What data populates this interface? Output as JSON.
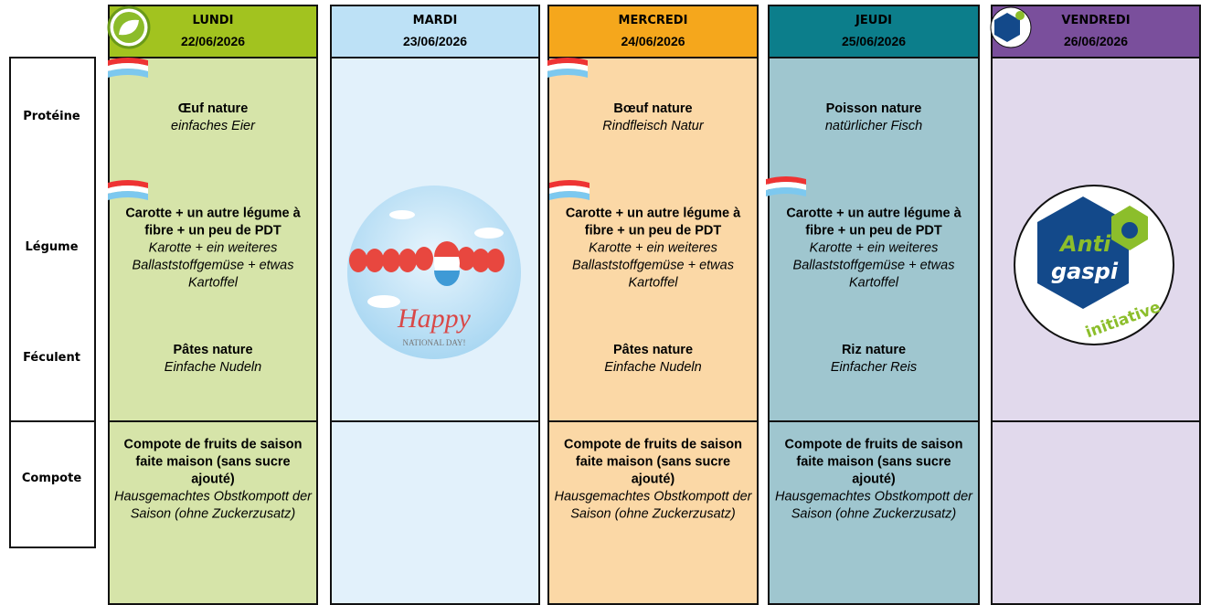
{
  "row_labels": {
    "proteine": "Protéine",
    "legume": "Légume",
    "feculent": "Féculent",
    "compote": "Compote"
  },
  "days": [
    {
      "name": "LUNDI",
      "date": "22/06/2026",
      "proteine": {
        "fr": "Œuf nature",
        "de": "einfaches Eier"
      },
      "legume": {
        "fr": "Carotte + un autre légume à fibre + un peu de PDT",
        "de": "Karotte + ein weiteres Ballaststoffgemüse + etwas Kartoffel"
      },
      "feculent": {
        "fr": "Pâtes nature",
        "de": "Einfache Nudeln"
      },
      "compote": {
        "fr": "Compote de fruits de saison faite maison (sans sucre ajouté)",
        "de": "Hausgemachtes Obstkompott der Saison (ohne Zuckerzusatz)"
      }
    },
    {
      "name": "MARDI",
      "date": "23/06/2026"
    },
    {
      "name": "MERCREDI",
      "date": "24/06/2026",
      "proteine": {
        "fr": "Bœuf nature",
        "de": "Rindfleisch Natur"
      },
      "legume": {
        "fr": "Carotte + un autre légume à fibre + un peu de PDT",
        "de": "Karotte + ein weiteres Ballaststoffgemüse + etwas Kartoffel"
      },
      "feculent": {
        "fr": "Pâtes nature",
        "de": "Einfache Nudeln"
      },
      "compote": {
        "fr": "Compote de fruits de saison faite maison (sans sucre ajouté)",
        "de": "Hausgemachtes Obstkompott der Saison (ohne Zuckerzusatz)"
      }
    },
    {
      "name": "JEUDI",
      "date": "25/06/2026",
      "proteine": {
        "fr": "Poisson nature",
        "de": "natürlicher Fisch"
      },
      "legume": {
        "fr": "Carotte + un autre légume à fibre + un peu de PDT",
        "de": "Karotte + ein weiteres Ballaststoffgemüse + etwas Kartoffel"
      },
      "feculent": {
        "fr": "Riz nature",
        "de": "Einfacher Reis"
      },
      "compote": {
        "fr": "Compote de fruits de saison faite maison (sans sucre ajouté)",
        "de": "Hausgemachtes Obstkompott der Saison (ohne Zuckerzusatz)"
      }
    },
    {
      "name": "VENDREDI",
      "date": "26/06/2026"
    }
  ],
  "national_day": {
    "title": "Happy",
    "subtitle": "NATIONAL DAY!"
  },
  "logo": {
    "line1": "Anti",
    "line2": "gaspi",
    "line3": "initiative"
  }
}
